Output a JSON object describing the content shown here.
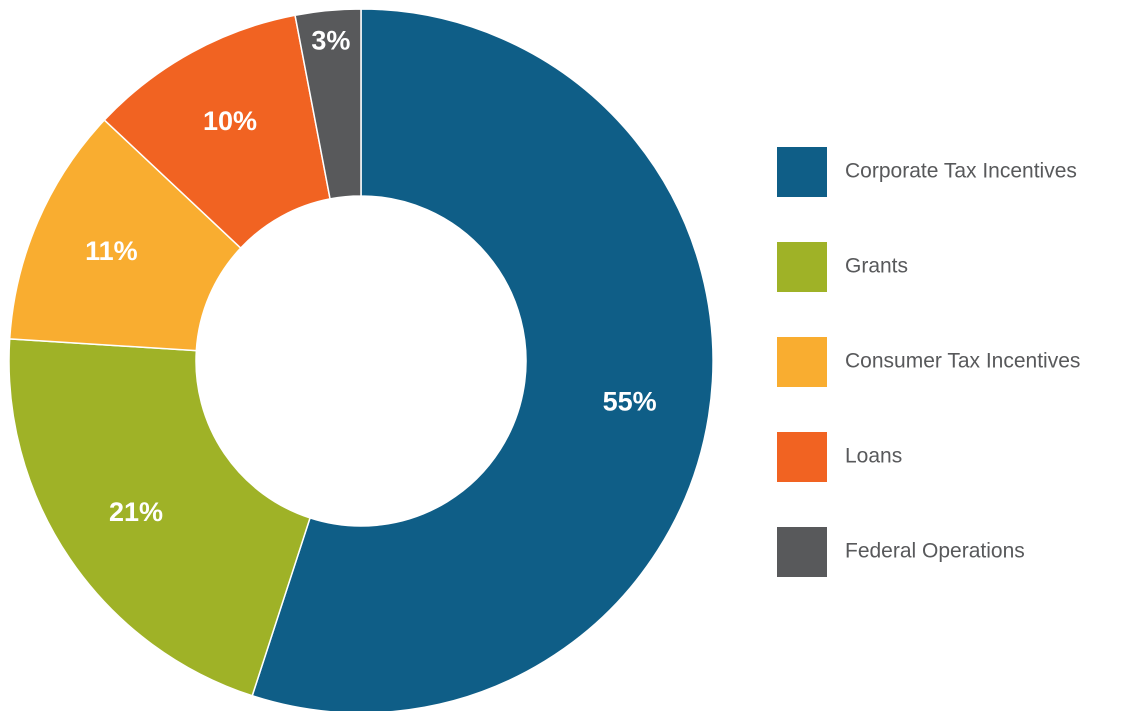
{
  "chart_data": {
    "type": "donut",
    "categories": [
      "Corporate Tax Incentives",
      "Grants",
      "Consumer Tax Incentives",
      "Loans",
      "Federal Operations"
    ],
    "values": [
      55,
      21,
      11,
      10,
      3
    ],
    "value_labels": [
      "55%",
      "21%",
      "11%",
      "10%",
      "3%"
    ],
    "colors": [
      "#0f5e87",
      "#9fb227",
      "#f9ad30",
      "#f16322",
      "#58595b"
    ],
    "legend": "right"
  }
}
